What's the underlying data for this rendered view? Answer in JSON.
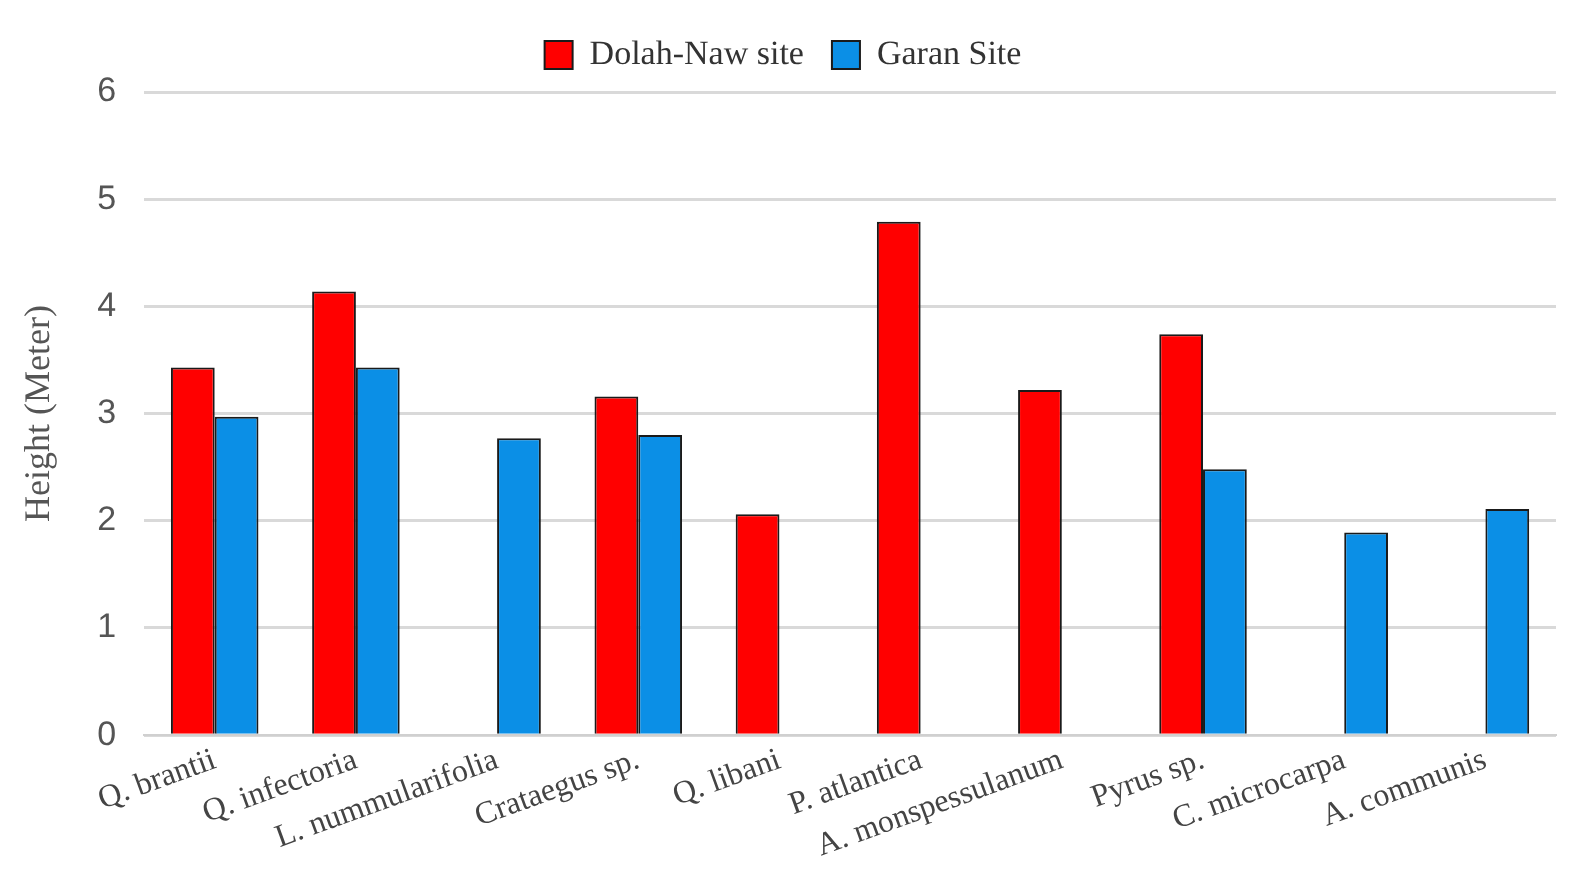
{
  "chart_data": {
    "type": "bar",
    "ylabel": "Height (Meter)",
    "categories": [
      "Q. brantii",
      "Q. infectoria",
      "L. nummularifolia",
      "Crataegus sp.",
      "Q. libani",
      "P. atlantica",
      "A. monspessulanum",
      "Pyrus sp.",
      "C. microcarpa",
      "A. communis"
    ],
    "series": [
      {
        "name": "Dolah-Naw site",
        "color": "#ff0000",
        "values": [
          3.43,
          4.14,
          null,
          3.16,
          2.06,
          4.79,
          3.22,
          3.74,
          null,
          null
        ]
      },
      {
        "name": "Garan Site",
        "color": "#0b8fe6",
        "values": [
          2.97,
          3.43,
          2.77,
          2.8,
          null,
          null,
          null,
          2.48,
          1.89,
          2.11
        ]
      }
    ],
    "ylim": [
      0,
      6
    ],
    "yticks": [
      0,
      1,
      2,
      3,
      4,
      5,
      6
    ],
    "grid": "y",
    "legend": "top"
  }
}
